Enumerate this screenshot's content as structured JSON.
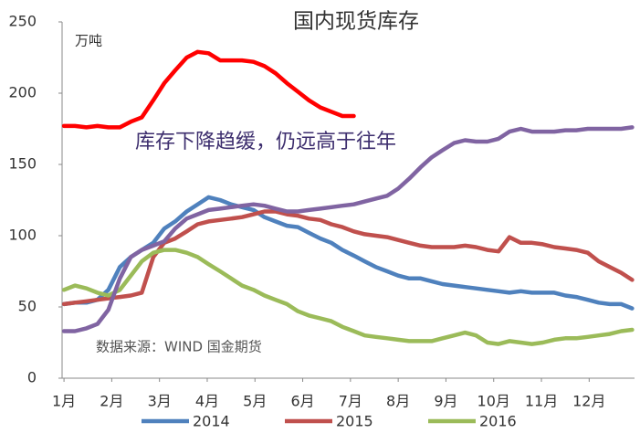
{
  "chart_data": {
    "type": "line",
    "title": "国内现货库存",
    "annotations": [
      "万吨",
      "库存下降趋缓，仍远高于往年",
      "数据来源：WIND 国金期货"
    ],
    "x": [
      1.0,
      1.23,
      1.47,
      1.7,
      1.93,
      2.17,
      2.4,
      2.63,
      2.87,
      3.1,
      3.33,
      3.57,
      3.8,
      4.03,
      4.27,
      4.5,
      4.73,
      4.97,
      5.2,
      5.43,
      5.67,
      5.9,
      6.13,
      6.37,
      6.6,
      6.83,
      7.07,
      7.3,
      7.53,
      7.77,
      8.0,
      8.23,
      8.47,
      8.7,
      8.93,
      9.17,
      9.4,
      9.63,
      9.87,
      10.1,
      10.33,
      10.57,
      10.8,
      11.03,
      11.27,
      11.5,
      11.73,
      11.97,
      12.2,
      12.43,
      12.67,
      12.9
    ],
    "xlim": [
      0.96,
      12.95
    ],
    "xticks": [
      {
        "value": 1,
        "label": "1月"
      },
      {
        "value": 2,
        "label": "2月"
      },
      {
        "value": 3,
        "label": "3月"
      },
      {
        "value": 4,
        "label": "4月"
      },
      {
        "value": 5,
        "label": "5月"
      },
      {
        "value": 6,
        "label": "6月"
      },
      {
        "value": 7,
        "label": "7月"
      },
      {
        "value": 8,
        "label": "8月"
      },
      {
        "value": 9,
        "label": "9月"
      },
      {
        "value": 10,
        "label": "10月"
      },
      {
        "value": 11,
        "label": "11月"
      },
      {
        "value": 12,
        "label": "12月"
      }
    ],
    "ylim": [
      0,
      250
    ],
    "yticks": [
      0,
      50,
      100,
      150,
      200,
      250
    ],
    "grid": false,
    "series": [
      {
        "name": "2014",
        "color": "#4f81bd",
        "values": [
          52,
          53,
          53,
          55,
          62,
          78,
          85,
          90,
          95,
          105,
          110,
          117,
          122,
          127,
          125,
          122,
          120,
          118,
          113,
          110,
          107,
          106,
          102,
          98,
          95,
          90,
          86,
          82,
          78,
          75,
          72,
          70,
          70,
          68,
          66,
          65,
          64,
          63,
          62,
          61,
          60,
          61,
          60,
          60,
          60,
          58,
          57,
          55,
          53,
          52,
          52,
          49
        ]
      },
      {
        "name": "2015",
        "color": "#c0504d",
        "values": [
          52,
          53,
          54,
          55,
          56,
          57,
          58,
          60,
          85,
          95,
          98,
          103,
          108,
          110,
          111,
          112,
          113,
          115,
          117,
          117,
          115,
          114,
          112,
          111,
          108,
          106,
          103,
          101,
          100,
          99,
          97,
          95,
          93,
          92,
          92,
          92,
          93,
          92,
          90,
          89,
          99,
          95,
          95,
          94,
          92,
          91,
          90,
          88,
          82,
          78,
          74,
          69
        ]
      },
      {
        "name": "2016",
        "color": "#9bbb59",
        "values": [
          62,
          65,
          63,
          60,
          58,
          62,
          72,
          82,
          88,
          90,
          90,
          88,
          85,
          80,
          75,
          70,
          65,
          62,
          58,
          55,
          52,
          47,
          44,
          42,
          40,
          36,
          33,
          30,
          29,
          28,
          27,
          26,
          26,
          26,
          28,
          30,
          32,
          30,
          25,
          24,
          26,
          25,
          24,
          25,
          27,
          28,
          28,
          29,
          30,
          31,
          33,
          34
        ]
      },
      {
        "color": "#ff0000",
        "values": [
          177,
          177,
          176,
          177,
          176,
          176,
          180,
          183,
          195,
          207,
          216,
          225,
          229,
          228,
          223,
          223,
          223,
          222,
          219,
          214,
          207,
          201,
          195,
          190,
          187,
          184,
          184,
          null,
          null,
          null,
          null,
          null,
          null,
          null,
          null,
          null,
          null,
          null,
          null,
          null,
          null,
          null,
          null,
          null,
          null,
          null,
          null,
          null,
          null,
          null,
          null,
          null
        ]
      },
      {
        "color": "#8064a2",
        "values": [
          33,
          33,
          35,
          38,
          48,
          70,
          85,
          90,
          93,
          96,
          105,
          112,
          115,
          118,
          119,
          120,
          121,
          122,
          121,
          119,
          117,
          117,
          118,
          119,
          120,
          121,
          122,
          124,
          126,
          128,
          133,
          140,
          148,
          155,
          160,
          165,
          167,
          166,
          166,
          168,
          173,
          175,
          173,
          173,
          173,
          174,
          174,
          175,
          175,
          175,
          175,
          176
        ]
      }
    ]
  }
}
